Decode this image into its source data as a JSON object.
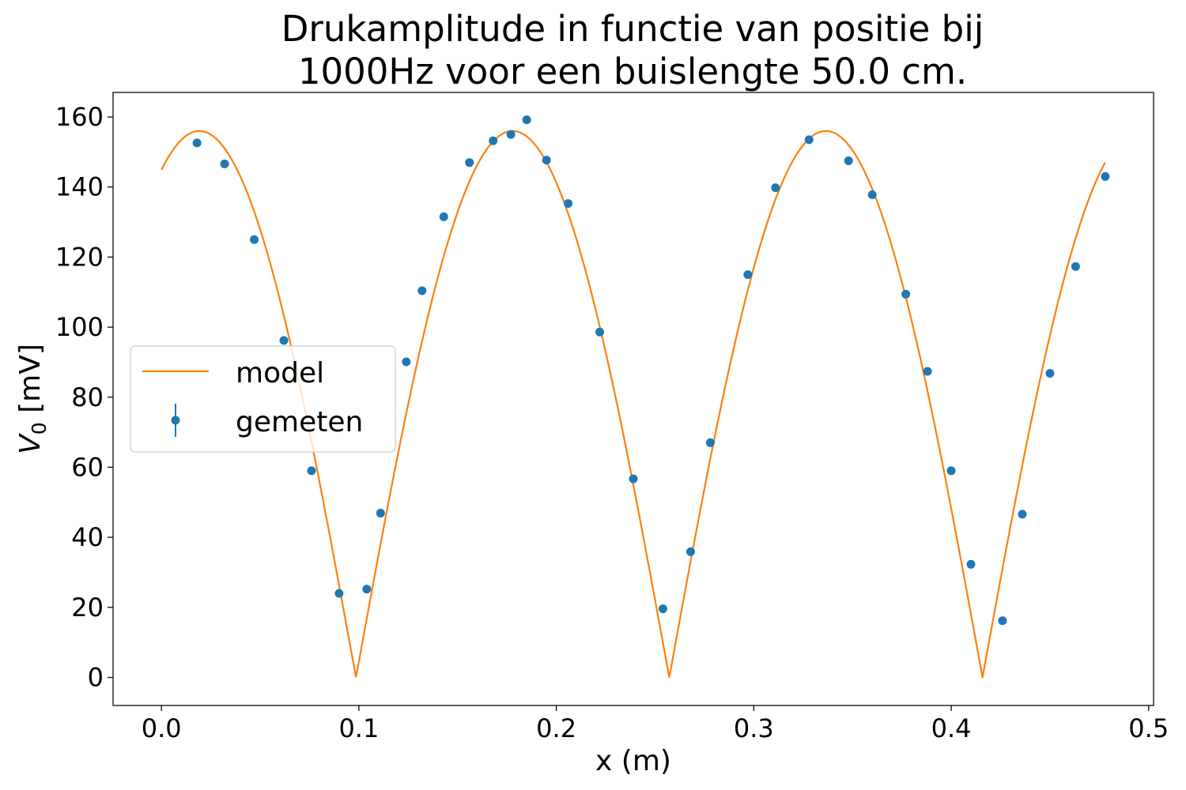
{
  "chart_data": {
    "type": "scatter",
    "title_line1": "Drukamplitude in functie van positie bij",
    "title_line2": "1000Hz voor een buislengte 50.0 cm.",
    "xlabel": "x (m)",
    "ylabel_main": "V",
    "ylabel_sub": "0",
    "ylabel_unit": "[mV]",
    "xlim": [
      -0.0245,
      0.5025
    ],
    "ylim": [
      -8,
      167
    ],
    "x_ticks": [
      0.0,
      0.1,
      0.2,
      0.3,
      0.4,
      0.5
    ],
    "x_tick_labels": [
      "0.0",
      "0.1",
      "0.2",
      "0.3",
      "0.4",
      "0.5"
    ],
    "y_ticks": [
      0,
      20,
      40,
      60,
      80,
      100,
      120,
      140,
      160
    ],
    "y_tick_labels": [
      "0",
      "20",
      "40",
      "60",
      "80",
      "100",
      "120",
      "140",
      "160"
    ],
    "grid": false,
    "legend_placement": "center-left",
    "series": [
      {
        "name": "model",
        "kind": "line",
        "color": "#ff7f0e",
        "function": {
          "form": "A*|cos(k*(x - x0))|",
          "A": 156,
          "k": 19.8,
          "x0": 0.0192,
          "x_min": 0.0,
          "x_max": 0.478
        }
      },
      {
        "name": "gemeten",
        "kind": "scatter",
        "color": "#1f77b4",
        "points": [
          [
            0.018,
            152.6
          ],
          [
            0.032,
            146.6
          ],
          [
            0.047,
            125.0
          ],
          [
            0.062,
            96.2
          ],
          [
            0.076,
            59.0
          ],
          [
            0.09,
            24.0
          ],
          [
            0.104,
            25.2
          ],
          [
            0.111,
            46.9
          ],
          [
            0.124,
            90.1
          ],
          [
            0.132,
            110.4
          ],
          [
            0.143,
            131.5
          ],
          [
            0.156,
            147.0
          ],
          [
            0.168,
            153.2
          ],
          [
            0.177,
            155.0
          ],
          [
            0.185,
            159.2
          ],
          [
            0.195,
            147.7
          ],
          [
            0.206,
            135.3
          ],
          [
            0.222,
            98.6
          ],
          [
            0.239,
            56.7
          ],
          [
            0.254,
            19.6
          ],
          [
            0.268,
            35.9
          ],
          [
            0.278,
            67.0
          ],
          [
            0.297,
            115.0
          ],
          [
            0.311,
            139.8
          ],
          [
            0.328,
            153.5
          ],
          [
            0.348,
            147.5
          ],
          [
            0.36,
            137.8
          ],
          [
            0.377,
            109.4
          ],
          [
            0.388,
            87.4
          ],
          [
            0.4,
            59.0
          ],
          [
            0.41,
            32.3
          ],
          [
            0.426,
            16.2
          ],
          [
            0.436,
            46.6
          ],
          [
            0.45,
            86.8
          ],
          [
            0.463,
            117.3
          ],
          [
            0.478,
            143.0
          ]
        ]
      }
    ]
  }
}
